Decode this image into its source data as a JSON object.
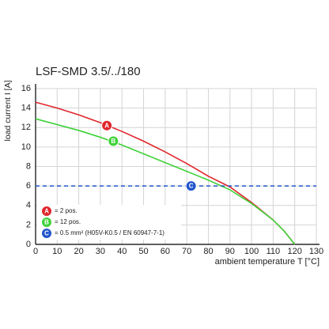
{
  "chart_data": {
    "type": "line",
    "title": "LSF-SMD 3.5/../180",
    "x_label": "ambient temperature T [°C]",
    "y_label": "load current I [A]",
    "xlim": [
      0,
      130
    ],
    "xticks": [
      0,
      10,
      20,
      30,
      40,
      50,
      60,
      70,
      80,
      90,
      100,
      110,
      120,
      130
    ],
    "ylim": [
      0,
      16
    ],
    "yticks": [
      0,
      2,
      4,
      6,
      8,
      10,
      12,
      14,
      16
    ],
    "grid": true,
    "series": [
      {
        "name": "= 2 pos.",
        "marker": "A",
        "color": "#e0262b",
        "dashed": false,
        "x": [
          0,
          10,
          20,
          30,
          40,
          50,
          60,
          70,
          80,
          90,
          100,
          110,
          115,
          120
        ],
        "values": [
          14.6,
          14.0,
          13.3,
          12.5,
          11.6,
          10.6,
          9.5,
          8.3,
          7.0,
          5.9,
          4.3,
          2.5,
          1.4,
          0
        ],
        "marker_x": 33,
        "marker_y": 12.2
      },
      {
        "name": "= 12 pos.",
        "marker": "B",
        "color": "#3fd23a",
        "dashed": false,
        "x": [
          0,
          10,
          20,
          30,
          40,
          50,
          60,
          70,
          80,
          90,
          100,
          110,
          115,
          120
        ],
        "values": [
          12.9,
          12.3,
          11.7,
          11.0,
          10.2,
          9.3,
          8.4,
          7.5,
          6.6,
          5.6,
          4.2,
          2.5,
          1.4,
          0
        ],
        "marker_x": 36,
        "marker_y": 10.6
      },
      {
        "name": "= 0.5 mm² (H05V-K0.5 / EN 60947-7-1)",
        "marker": "C",
        "color": "#2255cc",
        "dashed": true,
        "x": [
          0,
          130
        ],
        "values": [
          6,
          6
        ],
        "marker_x": 72,
        "marker_y": 6
      }
    ]
  }
}
